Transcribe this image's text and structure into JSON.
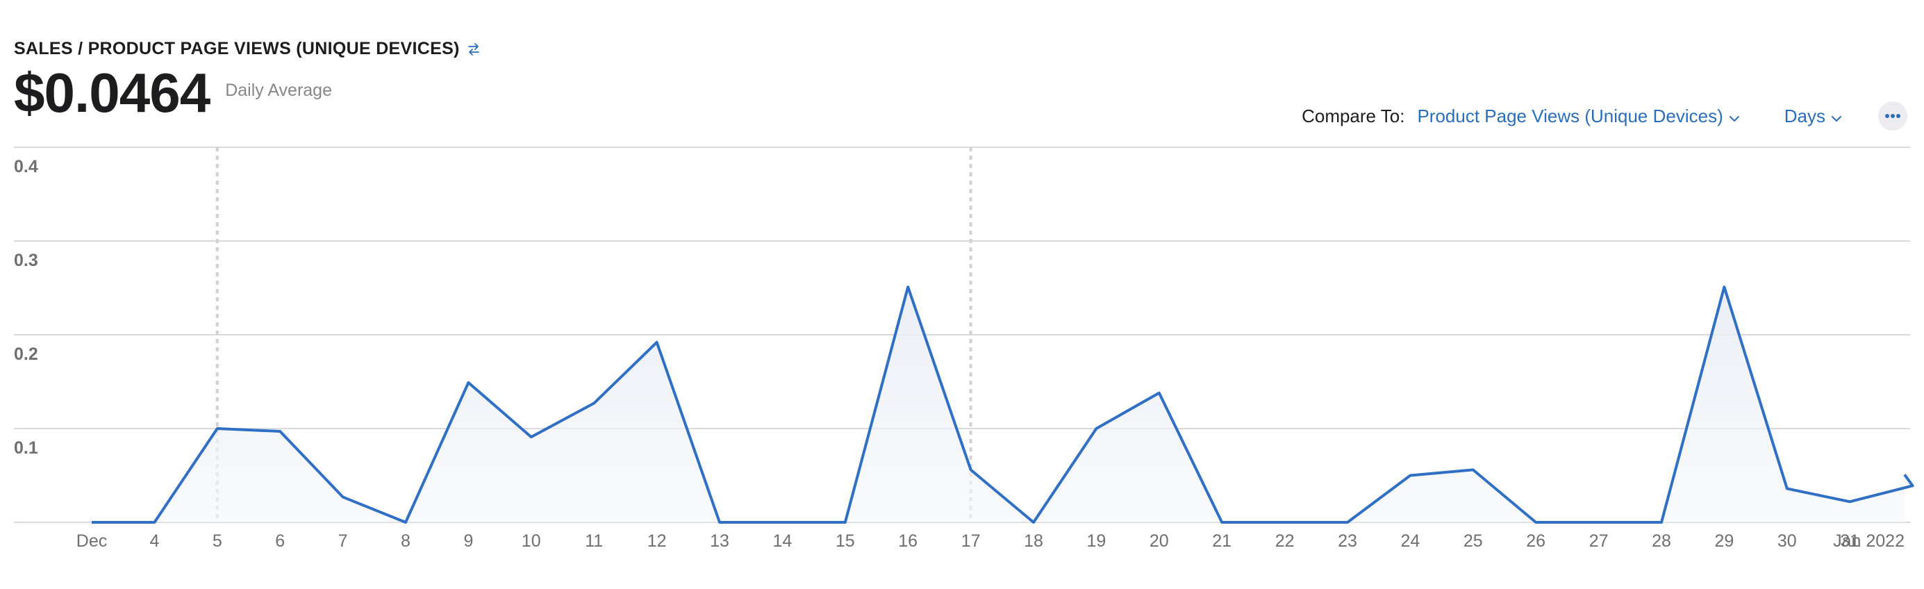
{
  "header": {
    "title": "SALES / PRODUCT PAGE VIEWS (UNIQUE DEVICES)",
    "swap_icon": "swap-arrows-icon",
    "value": "$0.0464",
    "value_caption": "Daily Average"
  },
  "controls": {
    "compare_label": "Compare To:",
    "compare_value": "Product Page Views (Unique Devices)",
    "granularity": "Days",
    "more_icon": "ellipsis-icon"
  },
  "colors": {
    "line": "#2f6fc4",
    "grid": "#d9d9de",
    "marker": "#d0d0d5"
  },
  "chart_data": {
    "type": "area",
    "x": [
      "Dec",
      "4",
      "5",
      "6",
      "7",
      "8",
      "9",
      "10",
      "11",
      "12",
      "13",
      "14",
      "15",
      "16",
      "17",
      "18",
      "19",
      "20",
      "21",
      "22",
      "23",
      "24",
      "25",
      "26",
      "27",
      "28",
      "29",
      "30",
      "31",
      "Jan 2022"
    ],
    "values": [
      0,
      0,
      0.1,
      0.097,
      0.027,
      0,
      0.149,
      0.091,
      0.127,
      0.192,
      0,
      0,
      0,
      0.251,
      0.056,
      0,
      0.1,
      0.138,
      0,
      0,
      0,
      0.05,
      0.056,
      0,
      0,
      0,
      0.251,
      0.036,
      0.022,
      0.039
    ],
    "yticks": [
      "0.1",
      "0.2",
      "0.3",
      "0.4"
    ],
    "ylim": [
      0,
      0.4
    ],
    "markers": [
      "5",
      "17"
    ],
    "grid": true,
    "legend": "none"
  }
}
